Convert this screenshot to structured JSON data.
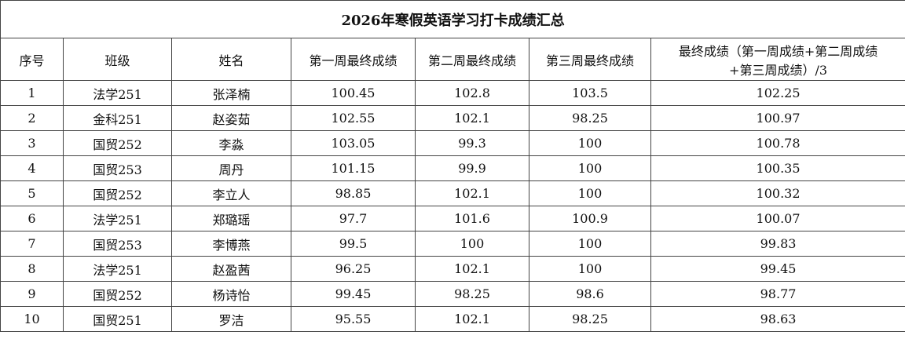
{
  "table": {
    "title": "2026年寒假英语学习打卡成绩汇总",
    "header": [
      "序号",
      "班级",
      "姓名",
      "第一周最终成绩",
      "第二周最终成绩",
      "第三周最终成绩",
      [
        "最终成绩（第一周成绩+第二周成绩",
        "+第三周成绩）/3"
      ]
    ],
    "rows": [
      [
        "1",
        "法学251",
        "张泽楠",
        "100.45",
        "102.8",
        "103.5",
        "102.25"
      ],
      [
        "2",
        "金科251",
        "赵姿茹",
        "102.55",
        "102.1",
        "98.25",
        "100.97"
      ],
      [
        "3",
        "国贸252",
        "李淼",
        "103.05",
        "99.3",
        "100",
        "100.78"
      ],
      [
        "4",
        "国贸253",
        "周丹",
        "101.15",
        "99.9",
        "100",
        "100.35"
      ],
      [
        "5",
        "国贸252",
        "李立人",
        "98.85",
        "102.1",
        "100",
        "100.32"
      ],
      [
        "6",
        "法学251",
        "郑璐瑶",
        "97.7",
        "101.6",
        "100.9",
        "100.07"
      ],
      [
        "7",
        "国贸253",
        "李博燕",
        "99.5",
        "100",
        "100",
        "99.83"
      ],
      [
        "8",
        "法学251",
        "赵盈茜",
        "96.25",
        "102.1",
        "100",
        "99.45"
      ],
      [
        "9",
        "国贸252",
        "杨诗怡",
        "99.45",
        "98.25",
        "98.6",
        "98.77"
      ],
      [
        "10",
        "国贸251",
        "罗洁",
        "95.55",
        "102.1",
        "98.25",
        "98.63"
      ]
    ]
  }
}
